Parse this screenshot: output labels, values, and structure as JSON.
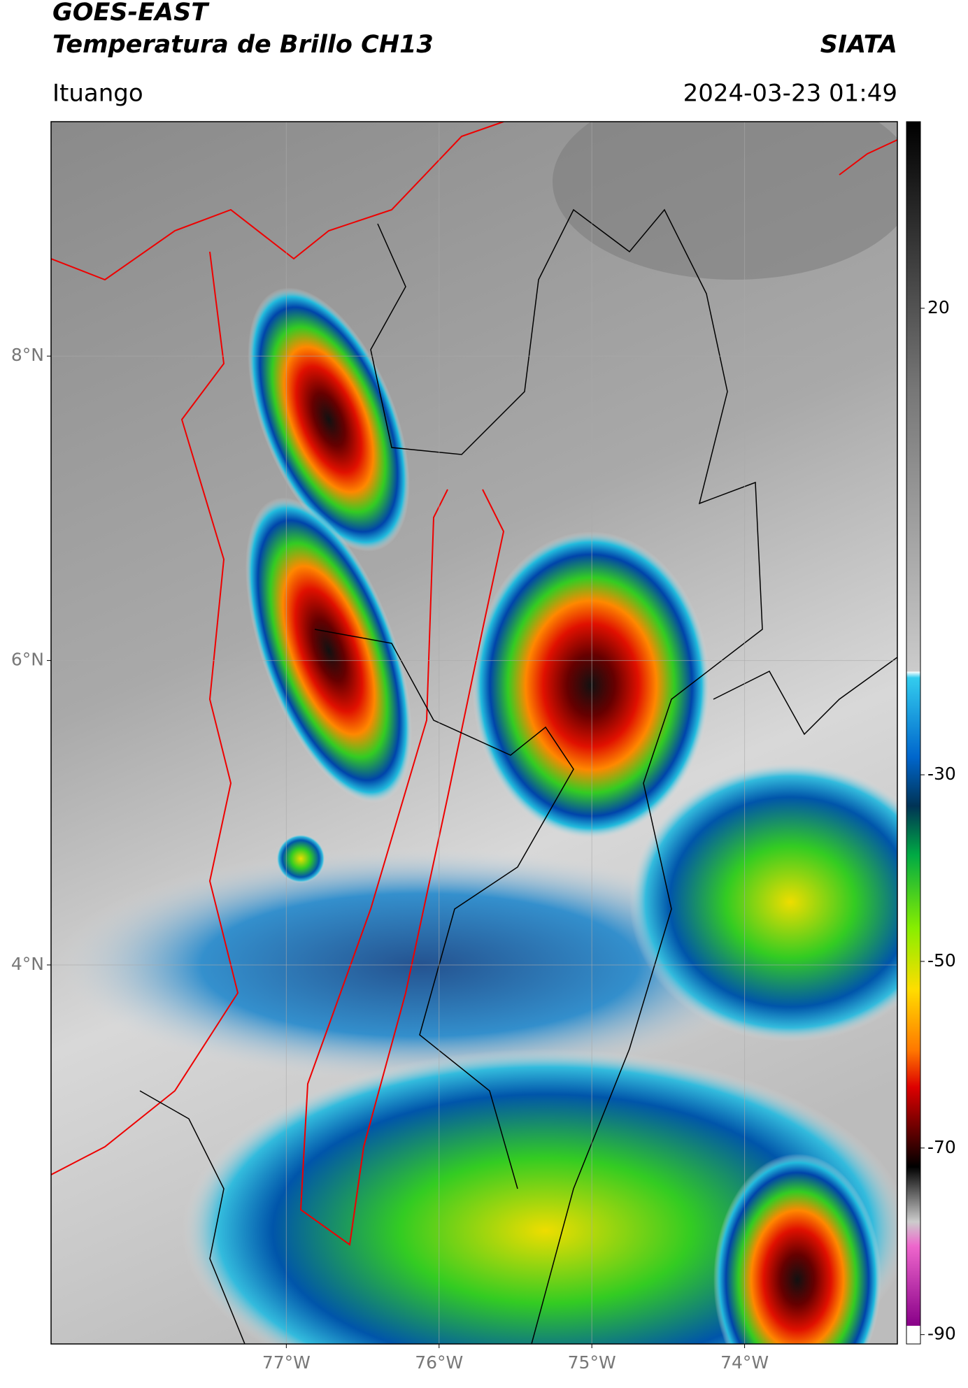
{
  "header": {
    "title": "GOES-EAST",
    "subtitle": "Temperatura de Brillo CH13",
    "source": "SIATA",
    "region": "Ituango",
    "datetime": "2024-03-23 01:49"
  },
  "map": {
    "xlim": [
      -78.54,
      -73.0
    ],
    "ylim": [
      1.51,
      9.54
    ],
    "xticks": [
      {
        "value": -77,
        "label": "77°W"
      },
      {
        "value": -76,
        "label": "76°W"
      },
      {
        "value": -75,
        "label": "75°W"
      },
      {
        "value": -74,
        "label": "74°W"
      }
    ],
    "yticks": [
      {
        "value": 8,
        "label": "8°N"
      },
      {
        "value": 6,
        "label": "6°N"
      },
      {
        "value": 4,
        "label": "4°N"
      }
    ],
    "grid": true
  },
  "colorbar": {
    "lim": [
      -91,
      40
    ],
    "ticks": [
      20,
      -30,
      -50,
      -70,
      -90
    ]
  }
}
